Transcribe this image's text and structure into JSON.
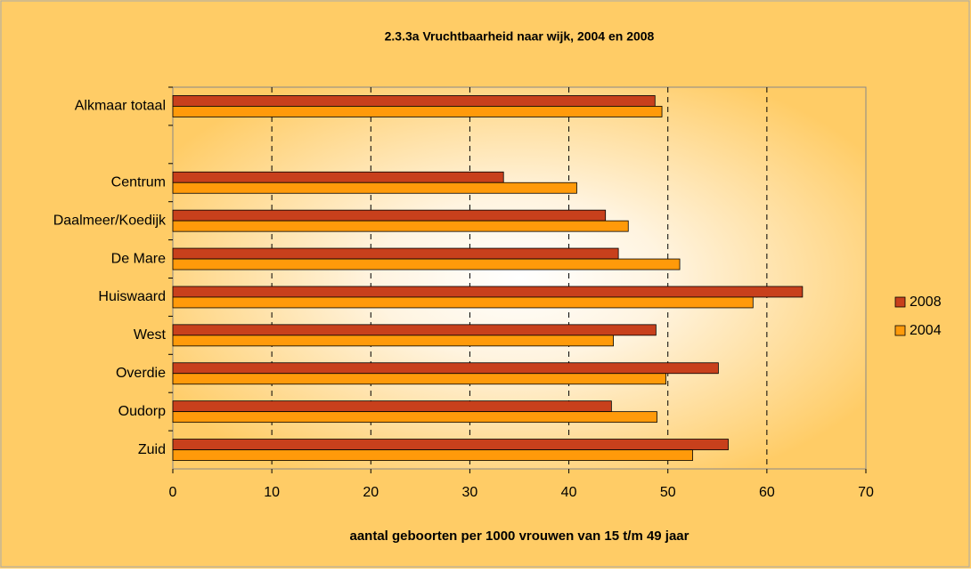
{
  "chart_data": {
    "type": "barh",
    "title": "2.3.3a Vruchtbaarheid naar wijk, 2004 en 2008",
    "xlabel": "aantal geboorten per 1000 vrouwen van 15 t/m 49 jaar",
    "categories": [
      "Alkmaar totaal",
      null,
      "Centrum",
      "Daalmeer/Koedijk",
      "De Mare",
      "Huiswaard",
      "West",
      "Overdie",
      "Oudorp",
      "Zuid"
    ],
    "series": [
      {
        "name": "2008",
        "color": "#c8401c",
        "values": [
          48.7,
          null,
          33.4,
          43.7,
          45.0,
          63.6,
          48.8,
          55.1,
          44.3,
          56.1
        ]
      },
      {
        "name": "2004",
        "color": "#ff9a0a",
        "values": [
          49.4,
          null,
          40.8,
          46.0,
          51.2,
          58.6,
          44.5,
          49.8,
          48.9,
          52.5
        ]
      }
    ],
    "xlim": [
      0,
      70
    ],
    "xticks": [
      0,
      10,
      20,
      30,
      40,
      50,
      60,
      70
    ],
    "grid": true,
    "legend": "right"
  }
}
